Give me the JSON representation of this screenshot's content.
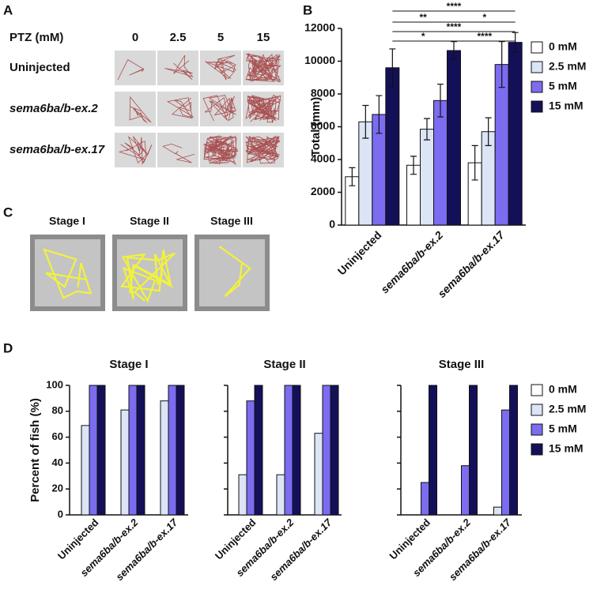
{
  "panel_labels": [
    "A",
    "B",
    "C",
    "D"
  ],
  "panel_a": {
    "header": "PTZ (mM)",
    "columns": [
      "0",
      "2.5",
      "5",
      "15"
    ],
    "rows": [
      "Uninjected",
      "sema6ba/b-ex.2",
      "sema6ba/b-ex.17"
    ]
  },
  "panel_c": {
    "stages": [
      "Stage I",
      "Stage II",
      "Stage III"
    ]
  },
  "chart_data": [
    {
      "type": "bar",
      "y_label": "Total (mm)",
      "categories": [
        "Uninjected",
        "sema6ba/b-ex.2",
        "sema6ba/b-ex.17"
      ],
      "series": [
        {
          "name": "0 mM",
          "color": "#ffffff",
          "values": [
            2950,
            3650,
            3800
          ],
          "errors": [
            550,
            550,
            1050
          ]
        },
        {
          "name": "2.5 mM",
          "color": "#dbe5f6",
          "values": [
            6300,
            5850,
            5700
          ],
          "errors": [
            1000,
            650,
            850
          ]
        },
        {
          "name": "5 mM",
          "color": "#7b6cf0",
          "values": [
            6750,
            7600,
            9800
          ],
          "errors": [
            1150,
            1000,
            1400
          ]
        },
        {
          "name": "15 mM",
          "color": "#141058",
          "values": [
            9600,
            10650,
            11150
          ],
          "errors": [
            1150,
            550,
            600
          ]
        }
      ],
      "ylim": [
        0,
        12000
      ],
      "yticks": [
        0,
        2000,
        4000,
        6000,
        8000,
        10000,
        12000
      ],
      "legend": "right",
      "annotations": [
        "****",
        "**",
        "*",
        "****",
        "*",
        "****"
      ]
    },
    {
      "type": "bar",
      "title": "Stage I",
      "y_label": "Percent of fish (%)",
      "categories": [
        "Uninjected",
        "sema6ba/b-ex.2",
        "sema6ba/b-ex.17"
      ],
      "series": [
        {
          "color": "#ffffff",
          "values": [
            0,
            0,
            0
          ]
        },
        {
          "color": "#dbe5f6",
          "values": [
            69,
            81,
            88
          ]
        },
        {
          "color": "#7b6cf0",
          "values": [
            100,
            100,
            100
          ]
        },
        {
          "color": "#141058",
          "values": [
            100,
            100,
            100
          ]
        }
      ],
      "ylim": [
        0,
        100
      ],
      "yticks": [
        0,
        20,
        40,
        60,
        80,
        100
      ]
    },
    {
      "type": "bar",
      "title": "Stage II",
      "categories": [
        "Uninjected",
        "sema6ba/b-ex.2",
        "sema6ba/b-ex.17"
      ],
      "series": [
        {
          "color": "#ffffff",
          "values": [
            0,
            0,
            0
          ]
        },
        {
          "color": "#dbe5f6",
          "values": [
            31,
            31,
            63
          ]
        },
        {
          "color": "#7b6cf0",
          "values": [
            88,
            100,
            100
          ]
        },
        {
          "color": "#141058",
          "values": [
            100,
            100,
            100
          ]
        }
      ],
      "ylim": [
        0,
        100
      ]
    },
    {
      "type": "bar",
      "title": "Stage III",
      "categories": [
        "Uninjected",
        "sema6ba/b-ex.2",
        "sema6ba/b-ex.17"
      ],
      "series": [
        {
          "name": "0 mM",
          "color": "#ffffff",
          "values": [
            0,
            0,
            0
          ]
        },
        {
          "name": "2.5 mM",
          "color": "#dbe5f6",
          "values": [
            0,
            0,
            6
          ]
        },
        {
          "name": "5 mM",
          "color": "#7b6cf0",
          "values": [
            25,
            38,
            81
          ]
        },
        {
          "name": "15 mM",
          "color": "#141058",
          "values": [
            100,
            100,
            100
          ]
        }
      ],
      "ylim": [
        0,
        100
      ],
      "legend": "right"
    }
  ]
}
